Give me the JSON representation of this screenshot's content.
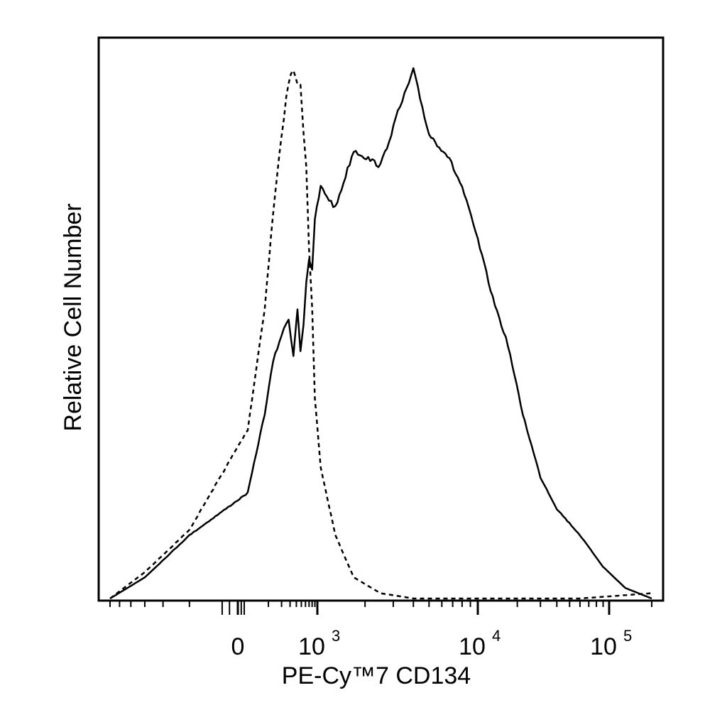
{
  "chart_data": {
    "type": "line",
    "title": "",
    "xlabel": "PE-Cy™7 CD134",
    "ylabel": "Relative Cell Number",
    "x_scale": "biexponential",
    "xlim": [
      -300,
      200000
    ],
    "ylim": [
      0,
      1
    ],
    "grid": false,
    "legend": "none",
    "x_ticks": [
      {
        "value": 0,
        "base": "0",
        "exp": ""
      },
      {
        "value": 1000,
        "base": "10",
        "exp": "3"
      },
      {
        "value": 10000,
        "base": "10",
        "exp": "4"
      },
      {
        "value": 100000,
        "base": "10",
        "exp": "5"
      }
    ],
    "series": [
      {
        "style": "dashed",
        "color": "#000000",
        "x": [
          -300,
          -150,
          -50,
          20,
          80,
          130,
          200,
          280,
          350,
          420,
          480,
          550,
          620,
          700,
          800,
          900,
          1050,
          1300,
          1700,
          2500,
          4000,
          8000,
          20000,
          60000,
          200000
        ],
        "y": [
          0.0,
          0.05,
          0.13,
          0.32,
          0.55,
          0.73,
          0.88,
          0.98,
          1.0,
          0.97,
          0.98,
          0.88,
          0.82,
          0.66,
          0.55,
          0.38,
          0.25,
          0.12,
          0.04,
          0.01,
          0.0,
          0.0,
          0.0,
          0.0,
          0.01
        ]
      },
      {
        "style": "solid",
        "color": "#000000",
        "x": [
          -300,
          -150,
          -50,
          20,
          80,
          130,
          200,
          280,
          350,
          420,
          480,
          550,
          620,
          700,
          800,
          900,
          1050,
          1300,
          1700,
          2500,
          3200,
          4000,
          5000,
          6500,
          8000,
          10000,
          13000,
          17000,
          22000,
          30000,
          40000,
          60000,
          90000,
          130000,
          200000
        ],
        "y": [
          0.0,
          0.04,
          0.12,
          0.2,
          0.35,
          0.45,
          0.5,
          0.53,
          0.46,
          0.55,
          0.47,
          0.52,
          0.6,
          0.64,
          0.62,
          0.72,
          0.78,
          0.74,
          0.85,
          0.82,
          0.92,
          1.0,
          0.88,
          0.84,
          0.78,
          0.68,
          0.57,
          0.48,
          0.35,
          0.23,
          0.17,
          0.12,
          0.06,
          0.02,
          0.0
        ]
      }
    ]
  }
}
